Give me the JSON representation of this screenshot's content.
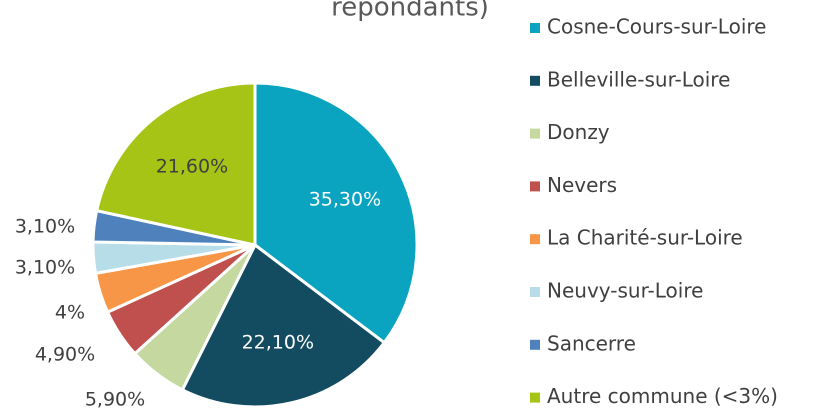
{
  "chart_data": {
    "type": "pie",
    "title": "répondants)",
    "categories": [
      "Cosne-Cours-sur-Loire",
      "Belleville-sur-Loire",
      "Donzy",
      "Nevers",
      "La Charité-sur-Loire",
      "Neuvy-sur-Loire",
      "Sancerre",
      "Autre commune (<3%)"
    ],
    "values": [
      35.3,
      22.1,
      5.9,
      4.9,
      4,
      3.1,
      3.1,
      21.6
    ],
    "value_labels": [
      "35,30%",
      "22,10%",
      "5,90%",
      "4,90%",
      "4%",
      "3,10%",
      "3,10%",
      "21,60%"
    ],
    "colors": [
      "#0aa3c0",
      "#134c60",
      "#c4d8a0",
      "#c0504d",
      "#f79646",
      "#b7dde8",
      "#4f81bd",
      "#a5c415"
    ],
    "legend": "right"
  }
}
